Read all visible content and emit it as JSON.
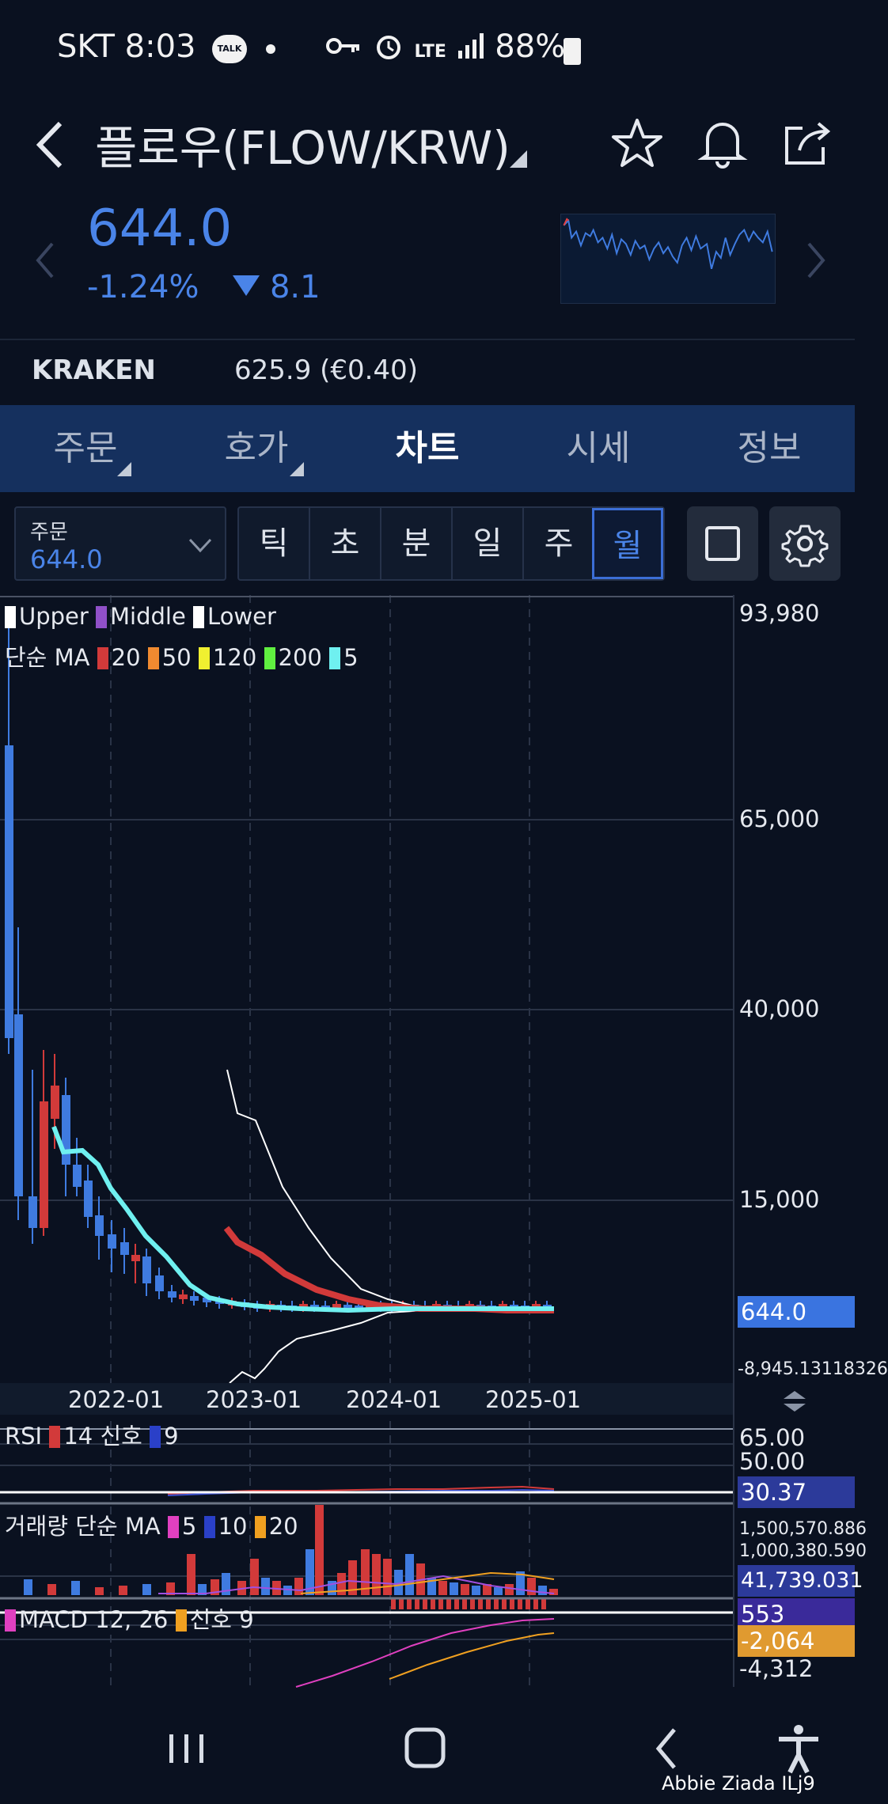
{
  "status_bar": {
    "carrier_time": "SKT 8:03",
    "talk_badge": "TALK",
    "network": "LTE",
    "battery": "88%"
  },
  "header": {
    "title": "플로우(FLOW/KRW)"
  },
  "price": {
    "current": "644.0",
    "change_pct": "-1.24%",
    "change_abs": "8.1"
  },
  "exchange": {
    "name": "KRAKEN",
    "value": "625.9 (€0.40)"
  },
  "tabs": [
    {
      "label": "주문",
      "active": false
    },
    {
      "label": "호가",
      "active": false
    },
    {
      "label": "차트",
      "active": true
    },
    {
      "label": "시세",
      "active": false
    },
    {
      "label": "정보",
      "active": false
    }
  ],
  "order": {
    "label": "주문",
    "value": "644.0"
  },
  "periods": [
    {
      "label": "틱",
      "active": false
    },
    {
      "label": "초",
      "active": false
    },
    {
      "label": "분",
      "active": false
    },
    {
      "label": "일",
      "active": false
    },
    {
      "label": "주",
      "active": false
    },
    {
      "label": "월",
      "active": true
    }
  ],
  "legend": {
    "bb_upper": "Upper",
    "bb_middle": "Middle",
    "bb_lower": "Lower",
    "ma_label": "단순 MA",
    "ma_20": "20",
    "ma_50": "50",
    "ma_120": "120",
    "ma_200": "200",
    "ma_5": "5",
    "rsi_label": "RSI",
    "rsi_period": "14",
    "rsi_signal_label": "신호",
    "rsi_signal": "9",
    "volume_label": "거래량 단순 MA",
    "vol_ma_5": "5",
    "vol_ma_10": "10",
    "vol_ma_20": "20",
    "macd_label": "MACD 12, 26",
    "macd_signal_label": "신호",
    "macd_signal": "9"
  },
  "price_axis": {
    "top": "93,980",
    "l65000": "65,000",
    "l40000": "40,000",
    "l15000": "15,000",
    "current": "644.0",
    "bottom": "-8,945.13118326"
  },
  "x_axis": [
    "2022-01",
    "2023-01",
    "2024-01",
    "2025-01"
  ],
  "rsi_axis": {
    "l65": "65.00",
    "l50": "50.00",
    "current": "30.37"
  },
  "volume_axis": {
    "l1": "1,500,570.886",
    "l2": "1,000,380.590",
    "current": "41,739.031"
  },
  "macd_axis": {
    "macd": "553",
    "signal": "-2,064",
    "low": "-4,312"
  },
  "colors": {
    "accent_blue": "#4a84e8",
    "up_red": "#d23a3a",
    "down_blue": "#3f7be0",
    "ma5_cyan": "#6ff0f0",
    "ma20_red": "#d23a3a",
    "macd_magenta": "#e040c0",
    "signal_orange": "#f0a020"
  },
  "icons": [
    "back-icon",
    "star-icon",
    "bell-icon",
    "share-icon",
    "chevron-left-icon",
    "chevron-right-icon",
    "chevron-down-icon",
    "square-icon",
    "gear-icon",
    "recent-apps-icon",
    "home-icon",
    "nav-back-icon",
    "accessibility-icon"
  ],
  "watermark": "Abbie Ziada ILj9"
}
